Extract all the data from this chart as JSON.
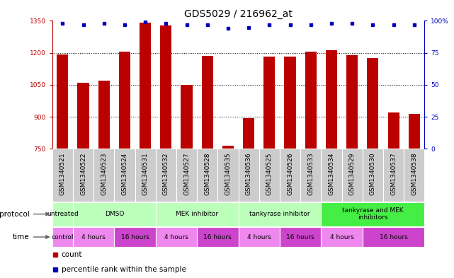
{
  "title": "GDS5029 / 216962_at",
  "samples": [
    "GSM1340521",
    "GSM1340522",
    "GSM1340523",
    "GSM1340524",
    "GSM1340531",
    "GSM1340532",
    "GSM1340527",
    "GSM1340528",
    "GSM1340535",
    "GSM1340536",
    "GSM1340525",
    "GSM1340526",
    "GSM1340533",
    "GSM1340534",
    "GSM1340529",
    "GSM1340530",
    "GSM1340537",
    "GSM1340538"
  ],
  "counts": [
    1193,
    1060,
    1070,
    1207,
    1340,
    1328,
    1048,
    1185,
    765,
    895,
    1183,
    1182,
    1207,
    1213,
    1188,
    1175,
    920,
    912
  ],
  "percentiles": [
    98,
    97,
    98,
    97,
    99,
    98,
    97,
    97,
    94,
    95,
    97,
    97,
    97,
    98,
    98,
    97,
    97,
    97
  ],
  "ylim_left": [
    750,
    1350
  ],
  "ylim_right": [
    0,
    100
  ],
  "yticks_left": [
    750,
    900,
    1050,
    1200,
    1350
  ],
  "yticks_right": [
    0,
    25,
    50,
    75,
    100
  ],
  "bar_color": "#bb0000",
  "dot_color": "#0000bb",
  "bar_width": 0.55,
  "protocols": [
    {
      "label": "untreated",
      "start": 0,
      "end": 1,
      "color": "#bbffbb"
    },
    {
      "label": "DMSO",
      "start": 1,
      "end": 5,
      "color": "#bbffbb"
    },
    {
      "label": "MEK inhibitor",
      "start": 5,
      "end": 9,
      "color": "#bbffbb"
    },
    {
      "label": "tankyrase inhibitor",
      "start": 9,
      "end": 13,
      "color": "#bbffbb"
    },
    {
      "label": "tankyrase and MEK\ninhibitors",
      "start": 13,
      "end": 18,
      "color": "#44ee44"
    }
  ],
  "times": [
    {
      "label": "control",
      "start": 0,
      "end": 1,
      "color": "#ee88ee"
    },
    {
      "label": "4 hours",
      "start": 1,
      "end": 3,
      "color": "#ee88ee"
    },
    {
      "label": "16 hours",
      "start": 3,
      "end": 5,
      "color": "#cc44cc"
    },
    {
      "label": "4 hours",
      "start": 5,
      "end": 7,
      "color": "#ee88ee"
    },
    {
      "label": "16 hours",
      "start": 7,
      "end": 9,
      "color": "#cc44cc"
    },
    {
      "label": "4 hours",
      "start": 9,
      "end": 11,
      "color": "#ee88ee"
    },
    {
      "label": "16 hours",
      "start": 11,
      "end": 13,
      "color": "#cc44cc"
    },
    {
      "label": "4 hours",
      "start": 13,
      "end": 15,
      "color": "#ee88ee"
    },
    {
      "label": "16 hours",
      "start": 15,
      "end": 18,
      "color": "#cc44cc"
    }
  ],
  "sample_box_color": "#cccccc",
  "legend_count_color": "#bb0000",
  "legend_dot_color": "#0000bb",
  "title_fontsize": 10,
  "tick_fontsize": 6.5,
  "label_fontsize": 7.5
}
